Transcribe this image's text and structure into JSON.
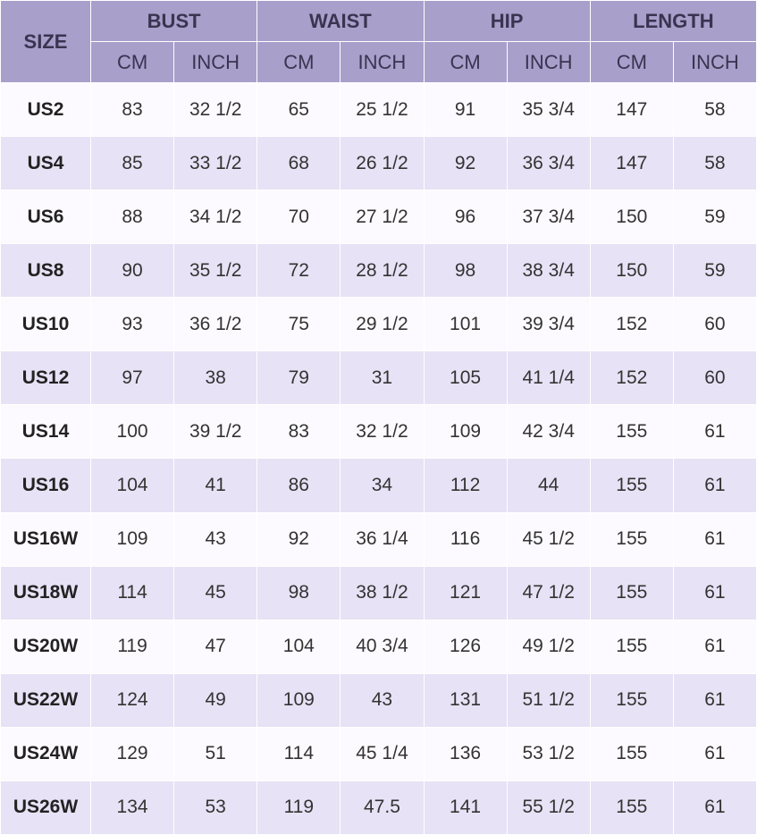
{
  "table": {
    "corner": "SIZE",
    "groups": [
      "BUST",
      "WAIST",
      "HIP",
      "LENGTH"
    ],
    "units": [
      "CM",
      "INCH",
      "CM",
      "INCH",
      "CM",
      "INCH",
      "CM",
      "INCH"
    ],
    "rows": [
      [
        "US2",
        "83",
        "32 1/2",
        "65",
        "25 1/2",
        "91",
        "35 3/4",
        "147",
        "58"
      ],
      [
        "US4",
        "85",
        "33 1/2",
        "68",
        "26 1/2",
        "92",
        "36 3/4",
        "147",
        "58"
      ],
      [
        "US6",
        "88",
        "34 1/2",
        "70",
        "27 1/2",
        "96",
        "37 3/4",
        "150",
        "59"
      ],
      [
        "US8",
        "90",
        "35 1/2",
        "72",
        "28 1/2",
        "98",
        "38 3/4",
        "150",
        "59"
      ],
      [
        "US10",
        "93",
        "36 1/2",
        "75",
        "29 1/2",
        "101",
        "39 3/4",
        "152",
        "60"
      ],
      [
        "US12",
        "97",
        "38",
        "79",
        "31",
        "105",
        "41 1/4",
        "152",
        "60"
      ],
      [
        "US14",
        "100",
        "39 1/2",
        "83",
        "32 1/2",
        "109",
        "42 3/4",
        "155",
        "61"
      ],
      [
        "US16",
        "104",
        "41",
        "86",
        "34",
        "112",
        "44",
        "155",
        "61"
      ],
      [
        "US16W",
        "109",
        "43",
        "92",
        "36 1/4",
        "116",
        "45 1/2",
        "155",
        "61"
      ],
      [
        "US18W",
        "114",
        "45",
        "98",
        "38 1/2",
        "121",
        "47 1/2",
        "155",
        "61"
      ],
      [
        "US20W",
        "119",
        "47",
        "104",
        "40 3/4",
        "126",
        "49 1/2",
        "155",
        "61"
      ],
      [
        "US22W",
        "124",
        "49",
        "109",
        "43",
        "131",
        "51 1/2",
        "155",
        "61"
      ],
      [
        "US24W",
        "129",
        "51",
        "114",
        "45 1/4",
        "136",
        "53 1/2",
        "155",
        "61"
      ],
      [
        "US26W",
        "134",
        "53",
        "119",
        "47.5",
        "141",
        "55 1/2",
        "155",
        "61"
      ]
    ]
  }
}
